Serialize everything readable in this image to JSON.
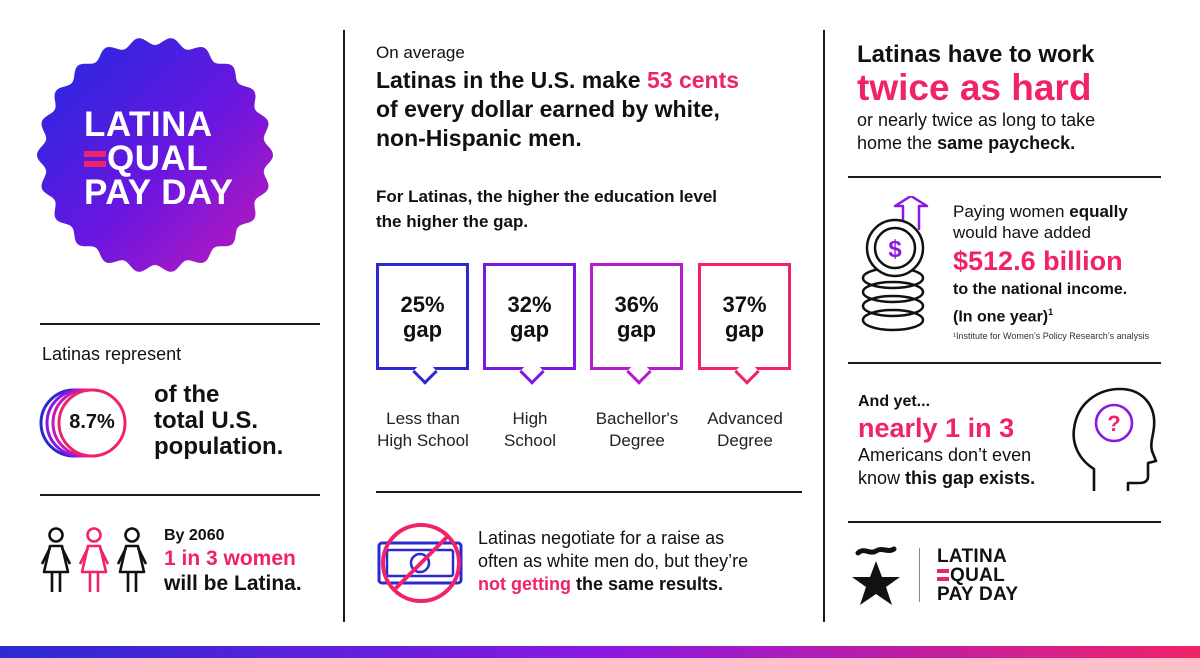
{
  "colors": {
    "accent": "#f0236a",
    "blue": "#2a2ad0",
    "purple": "#8a18e0",
    "dark": "#111111"
  },
  "badge": {
    "line1": "LATINA",
    "line2": "QUAL",
    "line3": "PAY DAY"
  },
  "population": {
    "intro": "Latinas represent",
    "value": "8.7%",
    "line1": "of the",
    "line2": "total U.S.",
    "line3": "population."
  },
  "future": {
    "line1": "By 2060",
    "line2": "1 in 3 women",
    "line3": "will be Latina.",
    "icon": "three-women-icon"
  },
  "average": {
    "intro": "On average",
    "headline_a": "Latinas in the U.S. make ",
    "headline_highlight": "53 cents",
    "headline_b": "of every dollar earned by white,",
    "headline_c": "non-Hispanic men."
  },
  "education": {
    "intro_line1": "For Latinas, the higher the education level",
    "intro_line2": "the higher the gap.",
    "gaps": [
      {
        "pct": "25%",
        "word": "gap",
        "label1": "Less than",
        "label2": "High School",
        "color": "#2a2ad0"
      },
      {
        "pct": "32%",
        "word": "gap",
        "label1": "High",
        "label2": "School",
        "color": "#7a1ae0"
      },
      {
        "pct": "36%",
        "word": "gap",
        "label1": "Bachellor's",
        "label2": "Degree",
        "color": "#b41ccc"
      },
      {
        "pct": "37%",
        "word": "gap",
        "label1": "Advanced",
        "label2": "Degree",
        "color": "#f0236a"
      }
    ]
  },
  "negotiate": {
    "line1": "Latinas negotiate for a raise as",
    "line2": "often as white men do, but they’re",
    "highlight": "not getting",
    "line3_rest": " the same results."
  },
  "work": {
    "line1": "Latinas have to work",
    "highlight": "twice as hard",
    "line2": "or nearly twice as long to take",
    "line3_a": "home the ",
    "line3_b": "same paycheck."
  },
  "income": {
    "line1_a": "Paying women ",
    "line1_b": "equally",
    "line2": "would have added",
    "amount": "$512.6 billion",
    "line3": "to the national income.",
    "line4": "(In one year)",
    "sup": "1",
    "footnote": "¹Institute for Women’s Policy Research’s analysis"
  },
  "awareness": {
    "line1": "And yet...",
    "highlight": "nearly 1 in 3",
    "line2": "Americans don’t even",
    "line3_a": "know ",
    "line3_b": "this gap exists."
  },
  "logo": {
    "line1": "LATINA",
    "line2": "QUAL",
    "line3": "PAY DAY"
  }
}
